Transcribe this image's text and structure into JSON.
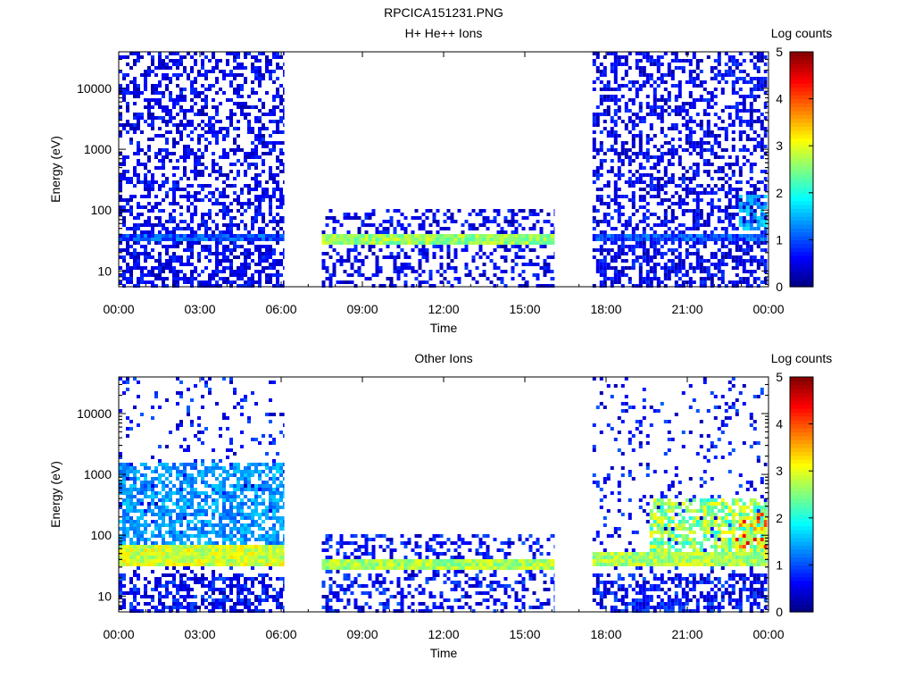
{
  "figure_title": "RPCICA151231.PNG",
  "chart_data": [
    {
      "type": "heatmap",
      "title": "H+ He++ Ions",
      "xlabel": "Time",
      "ylabel": "Energy (eV)",
      "x_ticks": [
        "00:00",
        "03:00",
        "06:00",
        "09:00",
        "12:00",
        "15:00",
        "18:00",
        "21:00",
        "00:00"
      ],
      "x_range_hours": [
        0,
        24
      ],
      "y_scale": "log",
      "y_range": [
        5.5,
        40000
      ],
      "y_ticks": [
        "10",
        "100",
        "1000",
        "10000"
      ],
      "colorbar": {
        "label": "Log counts",
        "range": [
          0,
          5
        ],
        "ticks": [
          "0",
          "1",
          "2",
          "3",
          "4",
          "5"
        ]
      },
      "data_intervals_hours": [
        [
          0,
          6.12
        ],
        [
          7.5,
          16.1
        ],
        [
          17.5,
          23.95
        ]
      ],
      "core_band": [
        {
          "interval": 0,
          "e_low": 30,
          "e_high": 42,
          "level": 1.0
        },
        {
          "interval": 1,
          "e_low": 26,
          "e_high": 40,
          "level": 2.6
        },
        {
          "interval": 2,
          "e_low": 30,
          "e_high": 42,
          "level": 1.0
        }
      ],
      "features": [
        {
          "t0": 22.8,
          "t1": 23.95,
          "e_low": 45,
          "e_high": 170,
          "level": 1.8
        }
      ],
      "noise_level": 0.9
    },
    {
      "type": "heatmap",
      "title": "Other Ions",
      "xlabel": "Time",
      "ylabel": "Energy (eV)",
      "x_ticks": [
        "00:00",
        "03:00",
        "06:00",
        "09:00",
        "12:00",
        "15:00",
        "18:00",
        "21:00",
        "00:00"
      ],
      "x_range_hours": [
        0,
        24
      ],
      "y_scale": "log",
      "y_range": [
        5.5,
        40000
      ],
      "y_ticks": [
        "10",
        "100",
        "1000",
        "10000"
      ],
      "colorbar": {
        "label": "Log counts",
        "range": [
          0,
          5
        ],
        "ticks": [
          "0",
          "1",
          "2",
          "3",
          "4",
          "5"
        ]
      },
      "data_intervals_hours": [
        [
          0,
          6.12
        ],
        [
          7.5,
          16.1
        ],
        [
          17.5,
          23.95
        ]
      ],
      "core_band": [
        {
          "interval": 0,
          "e_low": 30,
          "e_high": 65,
          "level": 2.9
        },
        {
          "interval": 1,
          "e_low": 26,
          "e_high": 42,
          "level": 2.7
        },
        {
          "interval": 2,
          "e_low": 30,
          "e_high": 55,
          "level": 2.7
        }
      ],
      "features": [
        {
          "t0": 19.5,
          "t1": 23.95,
          "e_low": 45,
          "e_high": 400,
          "level": 3.2
        },
        {
          "t0": 22.4,
          "t1": 23.95,
          "e_low": 45,
          "e_high": 220,
          "level": 4.6
        },
        {
          "t0": 0.0,
          "t1": 6.12,
          "e_low": 70,
          "e_high": 1500,
          "level": 1.7
        }
      ],
      "noise_level": 1.1
    }
  ]
}
